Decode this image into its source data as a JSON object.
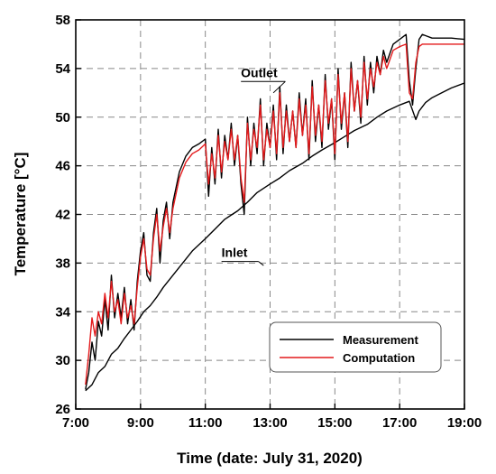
{
  "chart_data": {
    "type": "line",
    "xlabel": "Time (date: July 31, 2020)",
    "ylabel": "Temperature [°C]",
    "xlim": [
      7,
      19
    ],
    "ylim": [
      26,
      58
    ],
    "x_ticks": [
      {
        "value": 7,
        "label": "7:00"
      },
      {
        "value": 9,
        "label": "9:00"
      },
      {
        "value": 11,
        "label": "11:00"
      },
      {
        "value": 13,
        "label": "13:00"
      },
      {
        "value": 15,
        "label": "15:00"
      },
      {
        "value": 17,
        "label": "17:00"
      },
      {
        "value": 19,
        "label": "19:00"
      }
    ],
    "y_ticks": [
      26,
      30,
      34,
      38,
      42,
      46,
      50,
      54,
      58
    ],
    "grid": true,
    "legend_position": "bottom-right",
    "annotations": [
      {
        "text": "Outlet",
        "x": 12.1,
        "y": 53.3,
        "line_to": [
          13.1,
          52.0
        ]
      },
      {
        "text": "Inlet",
        "x": 11.5,
        "y": 38.5,
        "line_to": [
          12.8,
          37.8
        ]
      }
    ],
    "series": [
      {
        "name": "Measurement",
        "color": "#000000",
        "group": "outlet",
        "x": [
          7.3,
          7.4,
          7.5,
          7.6,
          7.7,
          7.8,
          7.9,
          8.0,
          8.1,
          8.2,
          8.3,
          8.4,
          8.5,
          8.6,
          8.7,
          8.8,
          8.9,
          9.0,
          9.1,
          9.2,
          9.3,
          9.4,
          9.5,
          9.6,
          9.7,
          9.8,
          9.9,
          10.0,
          10.2,
          10.4,
          10.6,
          10.8,
          11.0,
          11.1,
          11.2,
          11.3,
          11.4,
          11.5,
          11.6,
          11.7,
          11.8,
          11.9,
          12.0,
          12.1,
          12.2,
          12.3,
          12.4,
          12.5,
          12.6,
          12.7,
          12.8,
          12.9,
          13.0,
          13.1,
          13.2,
          13.3,
          13.4,
          13.5,
          13.6,
          13.7,
          13.8,
          13.9,
          14.0,
          14.1,
          14.2,
          14.3,
          14.4,
          14.5,
          14.6,
          14.7,
          14.8,
          14.9,
          15.0,
          15.1,
          15.2,
          15.3,
          15.4,
          15.5,
          15.6,
          15.7,
          15.8,
          15.9,
          16.0,
          16.1,
          16.2,
          16.3,
          16.4,
          16.5,
          16.6,
          16.8,
          17.0,
          17.2,
          17.3,
          17.4,
          17.5,
          17.6,
          17.7,
          17.8,
          18.0,
          18.3,
          18.6,
          19.0
        ],
        "y": [
          27.6,
          29.0,
          31.5,
          30.0,
          33.2,
          32.0,
          35.0,
          32.5,
          37.0,
          33.5,
          35.5,
          33.5,
          36.0,
          33.0,
          35.0,
          32.5,
          36.5,
          39.0,
          40.5,
          37.0,
          36.5,
          40.5,
          42.5,
          38.0,
          41.5,
          43.0,
          40.0,
          43.0,
          45.5,
          46.8,
          47.5,
          47.8,
          48.2,
          43.5,
          47.5,
          44.5,
          49.0,
          45.0,
          48.5,
          46.5,
          49.5,
          46.0,
          48.5,
          44.5,
          42.0,
          50.0,
          46.0,
          49.5,
          47.0,
          51.5,
          46.0,
          49.5,
          47.5,
          51.0,
          46.5,
          52.5,
          47.0,
          51.0,
          48.0,
          50.5,
          47.5,
          52.0,
          48.5,
          51.5,
          46.5,
          53.0,
          48.0,
          51.0,
          47.5,
          53.5,
          49.0,
          51.5,
          46.5,
          54.0,
          49.0,
          52.0,
          47.5,
          54.5,
          50.5,
          53.0,
          49.5,
          55.0,
          51.0,
          54.5,
          52.0,
          55.0,
          53.5,
          55.5,
          54.5,
          56.0,
          56.4,
          56.8,
          53.0,
          51.0,
          54.0,
          56.4,
          56.8,
          56.7,
          56.5,
          56.5,
          56.5,
          56.4
        ]
      },
      {
        "name": "Computation",
        "color": "#e41a1c",
        "group": "outlet",
        "x": [
          7.3,
          7.4,
          7.5,
          7.6,
          7.7,
          7.8,
          7.9,
          8.0,
          8.1,
          8.2,
          8.3,
          8.4,
          8.5,
          8.6,
          8.7,
          8.8,
          8.9,
          9.0,
          9.1,
          9.2,
          9.3,
          9.4,
          9.5,
          9.6,
          9.7,
          9.8,
          9.9,
          10.0,
          10.2,
          10.4,
          10.6,
          10.8,
          11.0,
          11.1,
          11.2,
          11.3,
          11.4,
          11.5,
          11.6,
          11.7,
          11.8,
          11.9,
          12.0,
          12.1,
          12.2,
          12.3,
          12.4,
          12.5,
          12.6,
          12.7,
          12.8,
          12.9,
          13.0,
          13.1,
          13.2,
          13.3,
          13.4,
          13.5,
          13.6,
          13.7,
          13.8,
          13.9,
          14.0,
          14.1,
          14.2,
          14.3,
          14.4,
          14.5,
          14.6,
          14.7,
          14.8,
          14.9,
          15.0,
          15.1,
          15.2,
          15.3,
          15.4,
          15.5,
          15.6,
          15.7,
          15.8,
          15.9,
          16.0,
          16.1,
          16.2,
          16.3,
          16.4,
          16.5,
          16.6,
          16.8,
          17.0,
          17.2,
          17.3,
          17.4,
          17.5,
          17.6,
          17.7,
          17.8,
          18.0,
          18.3,
          18.6,
          19.0
        ],
        "y": [
          28.0,
          30.5,
          33.5,
          32.0,
          34.0,
          33.0,
          35.5,
          33.5,
          36.5,
          34.0,
          35.0,
          33.0,
          35.5,
          33.5,
          34.5,
          33.0,
          36.0,
          38.5,
          40.0,
          37.5,
          37.0,
          40.0,
          42.0,
          39.0,
          41.0,
          42.5,
          40.5,
          42.5,
          45.0,
          46.3,
          47.0,
          47.3,
          47.8,
          44.5,
          47.0,
          45.0,
          48.5,
          45.5,
          48.0,
          46.5,
          49.0,
          46.5,
          48.5,
          45.0,
          43.0,
          49.5,
          46.5,
          49.0,
          47.5,
          51.0,
          46.5,
          49.0,
          47.5,
          50.5,
          47.0,
          52.0,
          47.5,
          50.5,
          48.0,
          50.5,
          47.5,
          51.5,
          48.5,
          51.0,
          47.0,
          52.5,
          48.5,
          51.0,
          48.0,
          53.0,
          49.5,
          51.5,
          47.0,
          53.5,
          49.5,
          52.0,
          48.0,
          54.0,
          50.5,
          53.0,
          50.0,
          54.5,
          51.5,
          54.0,
          52.5,
          54.5,
          53.5,
          55.0,
          54.0,
          55.5,
          55.8,
          56.0,
          52.0,
          51.5,
          54.5,
          55.8,
          56.0,
          56.0,
          56.0,
          56.0,
          56.0,
          56.0
        ]
      },
      {
        "name": "Inlet",
        "color": "#000000",
        "group": "inlet",
        "x": [
          7.3,
          7.5,
          7.7,
          7.9,
          8.1,
          8.3,
          8.5,
          8.7,
          8.9,
          9.1,
          9.3,
          9.5,
          9.7,
          10.0,
          10.3,
          10.6,
          11.0,
          11.3,
          11.6,
          12.0,
          12.3,
          12.6,
          13.0,
          13.3,
          13.6,
          14.0,
          14.3,
          14.6,
          15.0,
          15.3,
          15.6,
          16.0,
          16.3,
          16.6,
          17.0,
          17.3,
          17.5,
          17.6,
          17.8,
          18.0,
          18.3,
          18.6,
          19.0
        ],
        "y": [
          27.5,
          28.0,
          29.0,
          29.5,
          30.5,
          31.0,
          31.8,
          32.5,
          33.2,
          34.0,
          34.5,
          35.2,
          36.0,
          37.0,
          38.0,
          39.0,
          40.0,
          40.8,
          41.6,
          42.3,
          43.0,
          43.8,
          44.5,
          45.0,
          45.6,
          46.2,
          46.8,
          47.3,
          47.9,
          48.4,
          48.9,
          49.4,
          50.0,
          50.5,
          51.0,
          51.3,
          49.8,
          50.5,
          51.2,
          51.6,
          52.0,
          52.4,
          52.8
        ]
      }
    ]
  }
}
